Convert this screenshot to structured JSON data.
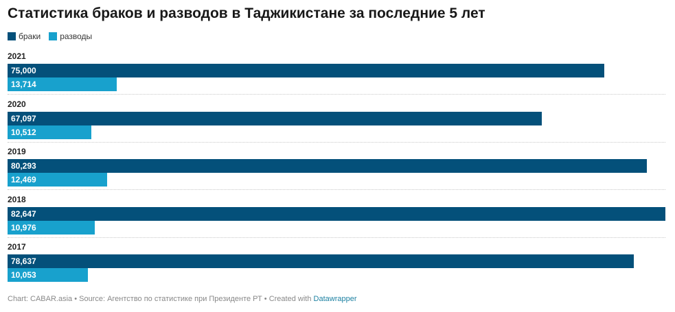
{
  "title": "Статистика браков и разводов в Таджикистане за последние 5 лет",
  "colors": {
    "marriages": "#04507a",
    "divorces": "#18a1cd"
  },
  "chart_data": {
    "type": "bar",
    "orientation": "horizontal",
    "categories": [
      "2021",
      "2020",
      "2019",
      "2018",
      "2017"
    ],
    "series": [
      {
        "name": "браки",
        "values": [
          75000,
          67097,
          80293,
          82647,
          78637
        ]
      },
      {
        "name": "разводы",
        "values": [
          13714,
          10512,
          12469,
          10976,
          10053
        ]
      }
    ],
    "value_labels": [
      [
        "75,000",
        "67,097",
        "80,293",
        "82,647",
        "78,637"
      ],
      [
        "13,714",
        "10,512",
        "12,469",
        "10,976",
        "10,053"
      ]
    ],
    "xlim": [
      0,
      82647
    ],
    "legend_position": "top-left",
    "grid": false
  },
  "footer": {
    "text": "Chart: CABAR.asia • Source: Агентство по статистике при Президенте РТ • Created with ",
    "link": "Datawrapper"
  }
}
